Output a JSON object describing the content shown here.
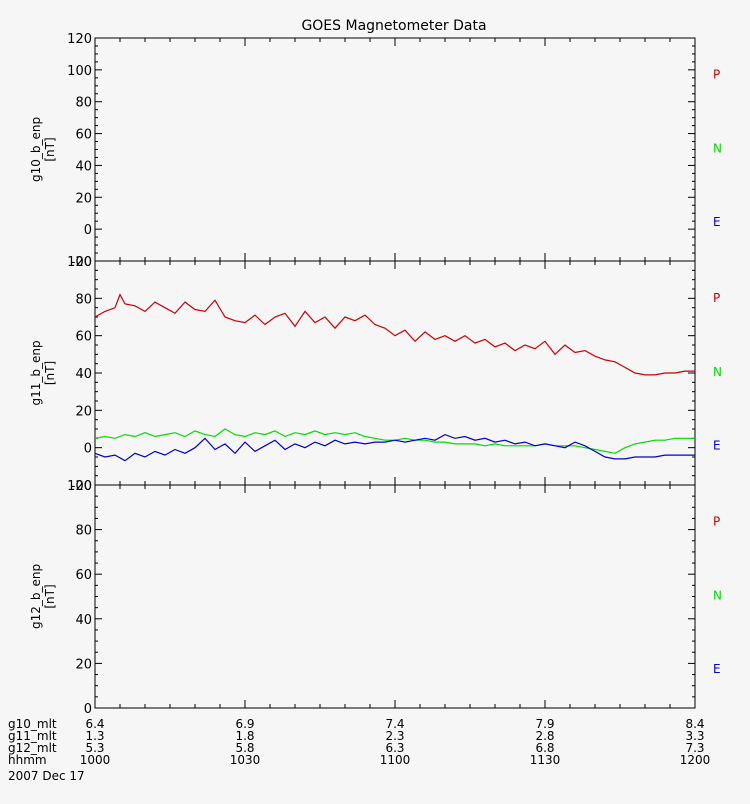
{
  "title": "GOES Magnetometer Data",
  "date_label": "2007 Dec 17",
  "colors": {
    "P": "#cc0000",
    "N": "#00dd00",
    "E": "#0000cc",
    "axis": "#000000",
    "bg": "#f6f6f6"
  },
  "footer": {
    "rows": [
      {
        "label": "g10_mlt",
        "values": [
          "6.4",
          "6.9",
          "7.4",
          "7.9",
          "8.4"
        ]
      },
      {
        "label": "g11_mlt",
        "values": [
          "1.3",
          "1.8",
          "2.3",
          "2.8",
          "3.3"
        ]
      },
      {
        "label": "g12_mlt",
        "values": [
          "5.3",
          "5.8",
          "6.3",
          "6.8",
          "7.3"
        ]
      },
      {
        "label": "hhmm",
        "values": [
          "1000",
          "1030",
          "1100",
          "1130",
          "1200"
        ]
      }
    ]
  },
  "chart_data": [
    {
      "type": "line",
      "ylabel": "g10_b_enp",
      "yunit": "[nT]",
      "ylim": [
        -20,
        120
      ],
      "yticks": [
        -20,
        0,
        20,
        40,
        60,
        80,
        100,
        120
      ],
      "xlim": [
        0,
        120
      ],
      "legend": [
        "P",
        "N",
        "E"
      ],
      "series": []
    },
    {
      "type": "line",
      "ylabel": "g11_b_enp",
      "yunit": "[nT]",
      "ylim": [
        -20,
        100
      ],
      "yticks": [
        -20,
        0,
        20,
        40,
        60,
        80,
        100
      ],
      "xlim": [
        0,
        120
      ],
      "legend": [
        "P",
        "N",
        "E"
      ],
      "series": [
        {
          "key": "P",
          "color": "#cc0000",
          "x": [
            0,
            2,
            4,
            5,
            6,
            8,
            10,
            12,
            14,
            16,
            18,
            20,
            22,
            24,
            26,
            28,
            30,
            32,
            34,
            36,
            38,
            40,
            42,
            44,
            46,
            48,
            50,
            52,
            54,
            56,
            58,
            60,
            62,
            64,
            66,
            68,
            70,
            72,
            74,
            76,
            78,
            80,
            82,
            84,
            86,
            88,
            90,
            92,
            94,
            96,
            98,
            100,
            102,
            104,
            106,
            108,
            110,
            112,
            114,
            116,
            118,
            120
          ],
          "y": [
            70,
            73,
            75,
            82,
            77,
            76,
            73,
            78,
            75,
            72,
            78,
            74,
            73,
            79,
            70,
            68,
            67,
            71,
            66,
            70,
            72,
            65,
            73,
            67,
            70,
            64,
            70,
            68,
            71,
            66,
            64,
            60,
            63,
            57,
            62,
            58,
            60,
            57,
            60,
            56,
            58,
            54,
            56,
            52,
            55,
            53,
            57,
            50,
            55,
            51,
            52,
            49,
            47,
            46,
            43,
            40,
            39,
            39,
            40,
            40,
            41,
            41
          ]
        },
        {
          "key": "N",
          "color": "#00dd00",
          "x": [
            0,
            2,
            4,
            6,
            8,
            10,
            12,
            14,
            16,
            18,
            20,
            22,
            24,
            26,
            28,
            30,
            32,
            34,
            36,
            38,
            40,
            42,
            44,
            46,
            48,
            50,
            52,
            54,
            56,
            58,
            60,
            62,
            64,
            66,
            68,
            70,
            72,
            74,
            76,
            78,
            80,
            82,
            84,
            86,
            88,
            90,
            92,
            94,
            96,
            98,
            100,
            102,
            104,
            106,
            108,
            110,
            112,
            114,
            116,
            118,
            120
          ],
          "y": [
            5,
            6,
            5,
            7,
            6,
            8,
            6,
            7,
            8,
            6,
            9,
            7,
            6,
            10,
            7,
            6,
            8,
            7,
            9,
            6,
            8,
            7,
            9,
            7,
            8,
            7,
            8,
            6,
            5,
            4,
            4,
            5,
            4,
            4,
            3,
            3,
            2,
            2,
            2,
            1,
            2,
            1,
            1,
            1,
            1,
            2,
            1,
            1,
            1,
            0,
            -1,
            -2,
            -3,
            0,
            2,
            3,
            4,
            4,
            5,
            5,
            5
          ]
        },
        {
          "key": "E",
          "color": "#0000cc",
          "x": [
            0,
            2,
            4,
            6,
            8,
            10,
            12,
            14,
            16,
            18,
            20,
            22,
            24,
            26,
            28,
            30,
            32,
            34,
            36,
            38,
            40,
            42,
            44,
            46,
            48,
            50,
            52,
            54,
            56,
            58,
            60,
            62,
            64,
            66,
            68,
            70,
            72,
            74,
            76,
            78,
            80,
            82,
            84,
            86,
            88,
            90,
            92,
            94,
            96,
            98,
            100,
            102,
            104,
            106,
            108,
            110,
            112,
            114,
            116,
            118,
            120
          ],
          "y": [
            -3,
            -5,
            -4,
            -7,
            -3,
            -5,
            -2,
            -4,
            -1,
            -3,
            0,
            5,
            -1,
            2,
            -3,
            3,
            -2,
            1,
            4,
            -1,
            2,
            0,
            3,
            1,
            4,
            2,
            3,
            2,
            3,
            3,
            4,
            3,
            4,
            5,
            4,
            7,
            5,
            6,
            4,
            5,
            3,
            4,
            2,
            3,
            1,
            2,
            1,
            0,
            3,
            1,
            -2,
            -5,
            -6,
            -6,
            -5,
            -5,
            -5,
            -4,
            -4,
            -4,
            -4
          ]
        }
      ]
    },
    {
      "type": "line",
      "ylabel": "g12_b_enp",
      "yunit": "[nT]",
      "ylim": [
        0,
        100
      ],
      "yticks": [
        0,
        20,
        40,
        60,
        80,
        100
      ],
      "xlim": [
        0,
        120
      ],
      "legend": [
        "P",
        "N",
        "E"
      ],
      "series": []
    }
  ]
}
